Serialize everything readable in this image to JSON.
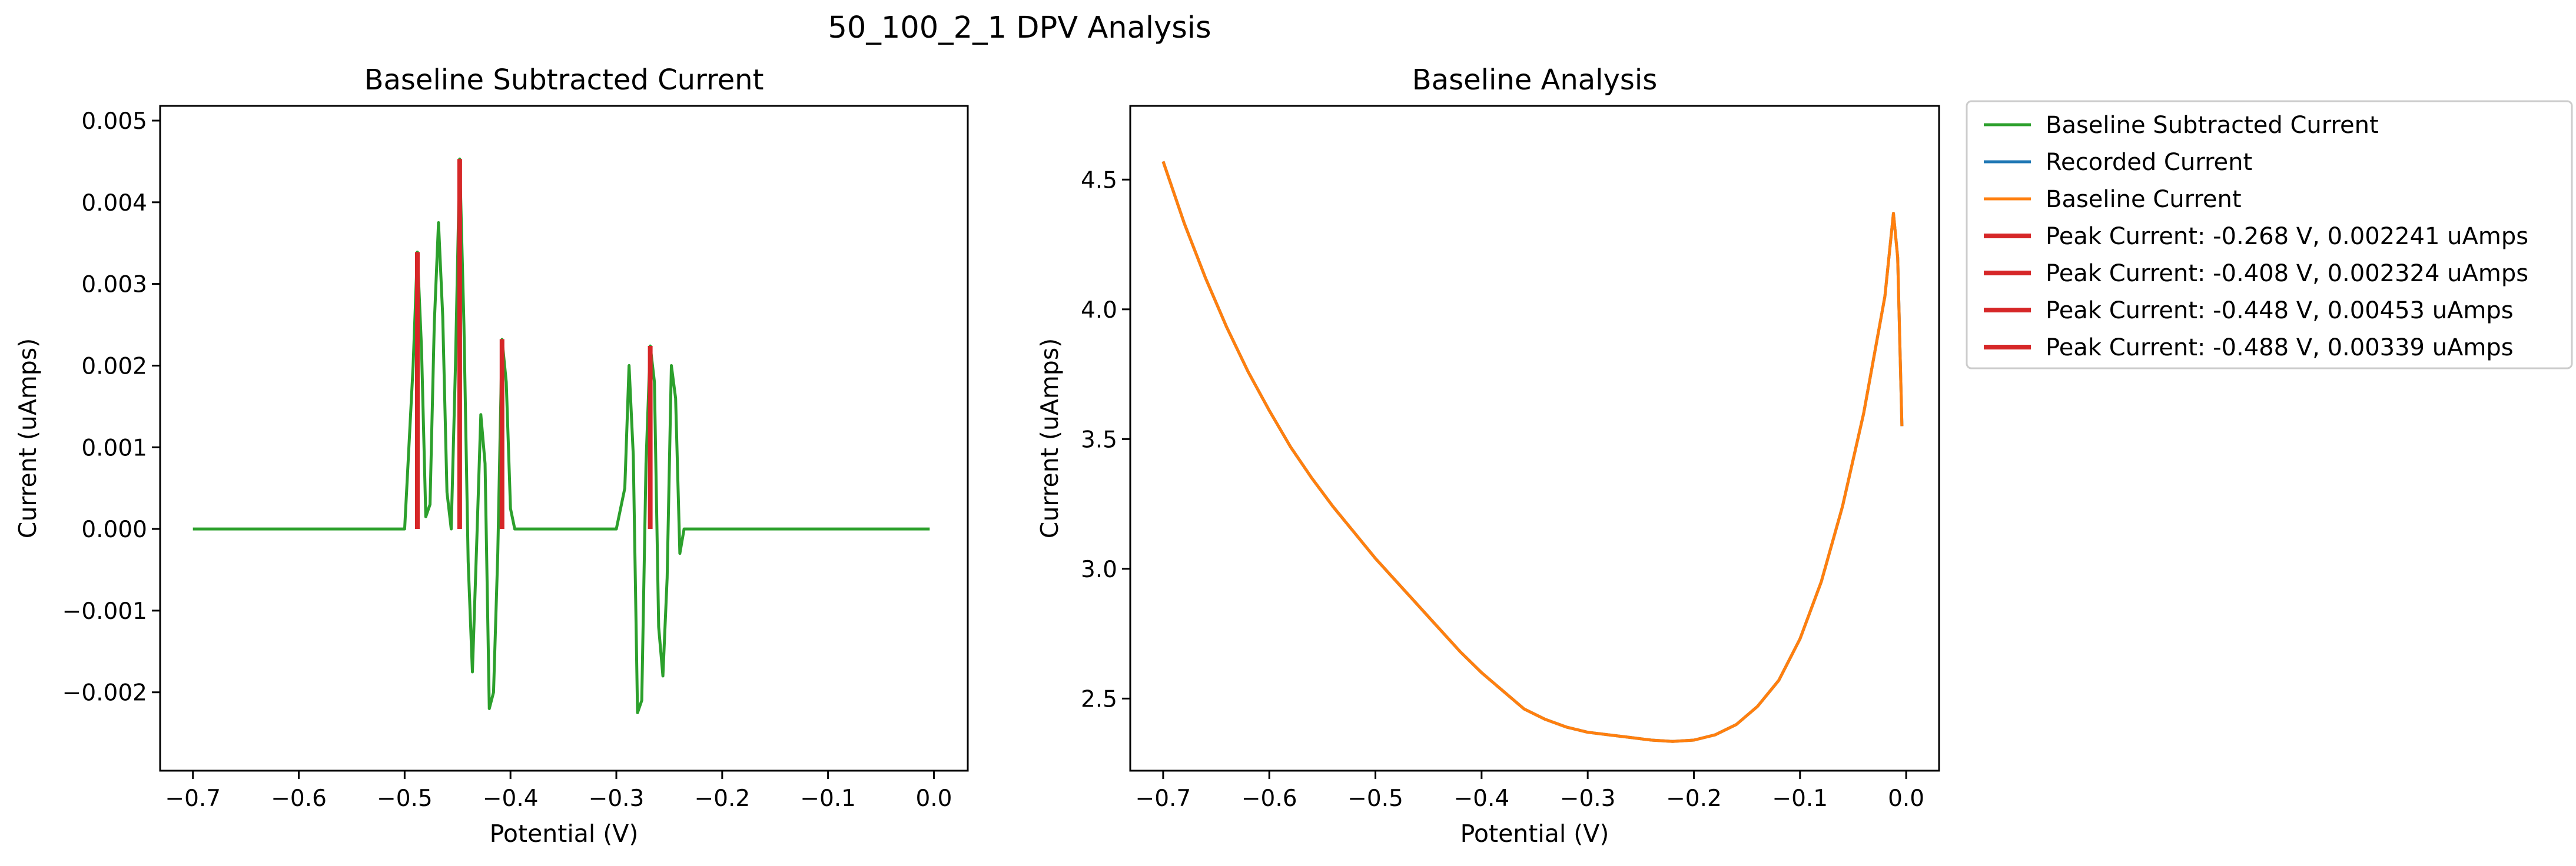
{
  "figure": {
    "suptitle": "50_100_2_1 DPV Analysis"
  },
  "colors": {
    "green": "#2ca02c",
    "blue": "#1f77b4",
    "orange": "#ff7f0e",
    "red": "#d62728"
  },
  "chart_data": [
    {
      "type": "line",
      "title": "Baseline Subtracted Current",
      "xlabel": "Potential (V)",
      "ylabel": "Current (uAmps)",
      "xlim": [
        -0.731,
        0.032
      ],
      "ylim": [
        -0.00296,
        0.00518
      ],
      "xticks": [
        {
          "v": -0.7,
          "label": "−0.7"
        },
        {
          "v": -0.6,
          "label": "−0.6"
        },
        {
          "v": -0.5,
          "label": "−0.5"
        },
        {
          "v": -0.4,
          "label": "−0.4"
        },
        {
          "v": -0.3,
          "label": "−0.3"
        },
        {
          "v": -0.2,
          "label": "−0.2"
        },
        {
          "v": -0.1,
          "label": "−0.1"
        },
        {
          "v": 0.0,
          "label": "0.0"
        }
      ],
      "yticks": [
        {
          "v": -0.002,
          "label": "−0.002"
        },
        {
          "v": -0.001,
          "label": "−0.001"
        },
        {
          "v": 0.0,
          "label": "0.000"
        },
        {
          "v": 0.001,
          "label": "0.001"
        },
        {
          "v": 0.002,
          "label": "0.002"
        },
        {
          "v": 0.003,
          "label": "0.003"
        },
        {
          "v": 0.004,
          "label": "0.004"
        },
        {
          "v": 0.005,
          "label": "0.005"
        }
      ],
      "series": [
        {
          "name": "Baseline Subtracted Current",
          "color": "#2ca02c",
          "x": [
            -0.7,
            -0.5,
            -0.496,
            -0.492,
            -0.488,
            -0.484,
            -0.48,
            -0.476,
            -0.472,
            -0.468,
            -0.464,
            -0.46,
            -0.456,
            -0.452,
            -0.448,
            -0.444,
            -0.44,
            -0.436,
            -0.432,
            -0.428,
            -0.424,
            -0.42,
            -0.416,
            -0.412,
            -0.408,
            -0.404,
            -0.4,
            -0.396,
            -0.39,
            -0.3,
            -0.292,
            -0.288,
            -0.284,
            -0.28,
            -0.276,
            -0.272,
            -0.268,
            -0.264,
            -0.26,
            -0.256,
            -0.252,
            -0.248,
            -0.244,
            -0.24,
            -0.236,
            -0.004
          ],
          "y": [
            0.0,
            0.0,
            0.001,
            0.002,
            0.00339,
            0.0022,
            0.00015,
            0.0003,
            0.0025,
            0.00375,
            0.0026,
            0.00045,
            0.0,
            0.002,
            0.00453,
            0.0025,
            -0.0004,
            -0.00175,
            -0.0002,
            0.0014,
            0.0008,
            -0.0022,
            -0.002,
            -0.0003,
            0.00232,
            0.0018,
            0.00025,
            0.0,
            0.0,
            0.0,
            0.0005,
            0.002,
            0.0009,
            -0.00225,
            -0.0021,
            0.0008,
            0.00224,
            0.0018,
            -0.0012,
            -0.0018,
            -0.0006,
            0.002,
            0.0016,
            -0.0003,
            0.0,
            0.0
          ]
        },
        {
          "name": "Peak Current: -0.268 V, 0.002241 uAmps",
          "color": "#d62728",
          "x": [
            -0.268,
            -0.268
          ],
          "y": [
            0.0,
            0.002241
          ]
        },
        {
          "name": "Peak Current: -0.408 V, 0.002324 uAmps",
          "color": "#d62728",
          "x": [
            -0.408,
            -0.408
          ],
          "y": [
            0.0,
            0.002324
          ]
        },
        {
          "name": "Peak Current: -0.448 V, 0.00453 uAmps",
          "color": "#d62728",
          "x": [
            -0.448,
            -0.448
          ],
          "y": [
            0.0,
            0.00453
          ]
        },
        {
          "name": "Peak Current: -0.488 V, 0.00339 uAmps",
          "color": "#d62728",
          "x": [
            -0.488,
            -0.488
          ],
          "y": [
            0.0,
            0.00339
          ]
        }
      ]
    },
    {
      "type": "line",
      "title": "Baseline Analysis",
      "xlabel": "Potential (V)",
      "ylabel": "Current (uAmps)",
      "xlim": [
        -0.731,
        0.031
      ],
      "ylim": [
        2.222,
        4.784
      ],
      "xticks": [
        {
          "v": -0.7,
          "label": "−0.7"
        },
        {
          "v": -0.6,
          "label": "−0.6"
        },
        {
          "v": -0.5,
          "label": "−0.5"
        },
        {
          "v": -0.4,
          "label": "−0.4"
        },
        {
          "v": -0.3,
          "label": "−0.3"
        },
        {
          "v": -0.2,
          "label": "−0.2"
        },
        {
          "v": -0.1,
          "label": "−0.1"
        },
        {
          "v": 0.0,
          "label": "0.0"
        }
      ],
      "yticks": [
        {
          "v": 2.5,
          "label": "2.5"
        },
        {
          "v": 3.0,
          "label": "3.0"
        },
        {
          "v": 3.5,
          "label": "3.5"
        },
        {
          "v": 4.0,
          "label": "4.0"
        },
        {
          "v": 4.5,
          "label": "4.5"
        }
      ],
      "series": [
        {
          "name": "Recorded Current",
          "color": "#1f77b4",
          "x": [
            -0.7,
            -0.68,
            -0.66,
            -0.64,
            -0.62,
            -0.6,
            -0.58,
            -0.56,
            -0.54,
            -0.52,
            -0.5,
            -0.48,
            -0.46,
            -0.44,
            -0.42,
            -0.4,
            -0.38,
            -0.36,
            -0.34,
            -0.32,
            -0.3,
            -0.28,
            -0.26,
            -0.24,
            -0.22,
            -0.2,
            -0.18,
            -0.16,
            -0.14,
            -0.12,
            -0.1,
            -0.08,
            -0.06,
            -0.04,
            -0.02,
            -0.012,
            -0.008,
            -0.004
          ],
          "y": [
            4.57,
            4.33,
            4.12,
            3.93,
            3.76,
            3.61,
            3.47,
            3.35,
            3.24,
            3.14,
            3.04,
            2.95,
            2.86,
            2.77,
            2.68,
            2.6,
            2.53,
            2.46,
            2.42,
            2.39,
            2.37,
            2.36,
            2.35,
            2.34,
            2.335,
            2.34,
            2.36,
            2.4,
            2.47,
            2.57,
            2.73,
            2.95,
            3.24,
            3.6,
            4.05,
            4.37,
            4.2,
            3.55
          ]
        },
        {
          "name": "Baseline Current",
          "color": "#ff7f0e",
          "x": [
            -0.7,
            -0.68,
            -0.66,
            -0.64,
            -0.62,
            -0.6,
            -0.58,
            -0.56,
            -0.54,
            -0.52,
            -0.5,
            -0.48,
            -0.46,
            -0.44,
            -0.42,
            -0.4,
            -0.38,
            -0.36,
            -0.34,
            -0.32,
            -0.3,
            -0.28,
            -0.26,
            -0.24,
            -0.22,
            -0.2,
            -0.18,
            -0.16,
            -0.14,
            -0.12,
            -0.1,
            -0.08,
            -0.06,
            -0.04,
            -0.02,
            -0.012,
            -0.008,
            -0.004
          ],
          "y": [
            4.57,
            4.33,
            4.12,
            3.93,
            3.76,
            3.61,
            3.47,
            3.35,
            3.24,
            3.14,
            3.04,
            2.95,
            2.86,
            2.77,
            2.68,
            2.6,
            2.53,
            2.46,
            2.42,
            2.39,
            2.37,
            2.36,
            2.35,
            2.34,
            2.335,
            2.34,
            2.36,
            2.4,
            2.47,
            2.57,
            2.73,
            2.95,
            3.24,
            3.6,
            4.05,
            4.37,
            4.2,
            3.55
          ]
        }
      ]
    }
  ],
  "legend": {
    "placement": "outside-right",
    "entries": [
      {
        "label": "Baseline Subtracted Current",
        "color": "#2ca02c"
      },
      {
        "label": "Recorded Current",
        "color": "#1f77b4"
      },
      {
        "label": "Baseline Current",
        "color": "#ff7f0e"
      },
      {
        "label": "Peak Current: -0.268 V, 0.002241 uAmps",
        "color": "#d62728"
      },
      {
        "label": "Peak Current: -0.408 V, 0.002324 uAmps",
        "color": "#d62728"
      },
      {
        "label": "Peak Current: -0.448 V, 0.00453 uAmps",
        "color": "#d62728"
      },
      {
        "label": "Peak Current: -0.488 V, 0.00339 uAmps",
        "color": "#d62728"
      }
    ]
  }
}
